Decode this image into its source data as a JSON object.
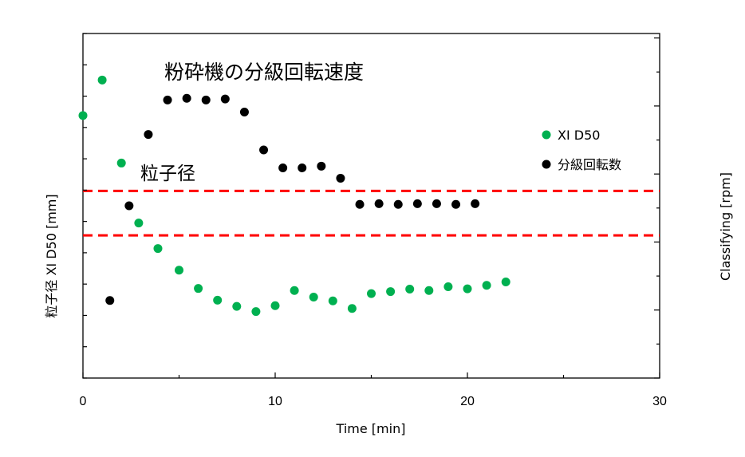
{
  "chart_data": {
    "type": "scatter",
    "xlabel": "Time [min]",
    "ylabel_left": "粒子径 XI D50 [mm]",
    "ylabel_right": "Classifying [rpm]",
    "xlim": [
      0,
      30
    ],
    "x_ticks": [
      0,
      10,
      20,
      30
    ],
    "left_axis_minor_tick_count": 11,
    "right_axis_tick_count": 5,
    "annotations": {
      "speed": "粉砕機の分級回転速度",
      "size": "粒子径"
    },
    "reference_lines": [
      {
        "y_frac": 0.543,
        "color": "#ff0000",
        "style": "dashed"
      },
      {
        "y_frac": 0.414,
        "color": "#ff0000",
        "style": "dashed"
      }
    ],
    "series": [
      {
        "name": "XI D50",
        "color": "#00b050",
        "axis": "left",
        "x": [
          0,
          1,
          2,
          2.9,
          3.9,
          5,
          6,
          7,
          8,
          9,
          10,
          11,
          12,
          13,
          14,
          15,
          16,
          17,
          18,
          19,
          20,
          21,
          22
        ],
        "y_frac": [
          0.762,
          0.865,
          0.624,
          0.45,
          0.376,
          0.313,
          0.26,
          0.226,
          0.208,
          0.193,
          0.21,
          0.254,
          0.235,
          0.224,
          0.202,
          0.245,
          0.251,
          0.258,
          0.254,
          0.265,
          0.259,
          0.269,
          0.279
        ]
      },
      {
        "name": "分級回転数",
        "color": "#000000",
        "axis": "right",
        "x": [
          1.4,
          2.4,
          3.4,
          4.4,
          5.4,
          6.4,
          7.4,
          8.4,
          9.4,
          10.4,
          11.4,
          12.4,
          13.4,
          14.4,
          15.4,
          16.4,
          17.4,
          18.4,
          19.4,
          20.4
        ],
        "y_frac": [
          0.225,
          0.5,
          0.707,
          0.807,
          0.812,
          0.807,
          0.81,
          0.772,
          0.662,
          0.61,
          0.61,
          0.615,
          0.58,
          0.504,
          0.506,
          0.504,
          0.506,
          0.506,
          0.504,
          0.506
        ]
      }
    ]
  }
}
